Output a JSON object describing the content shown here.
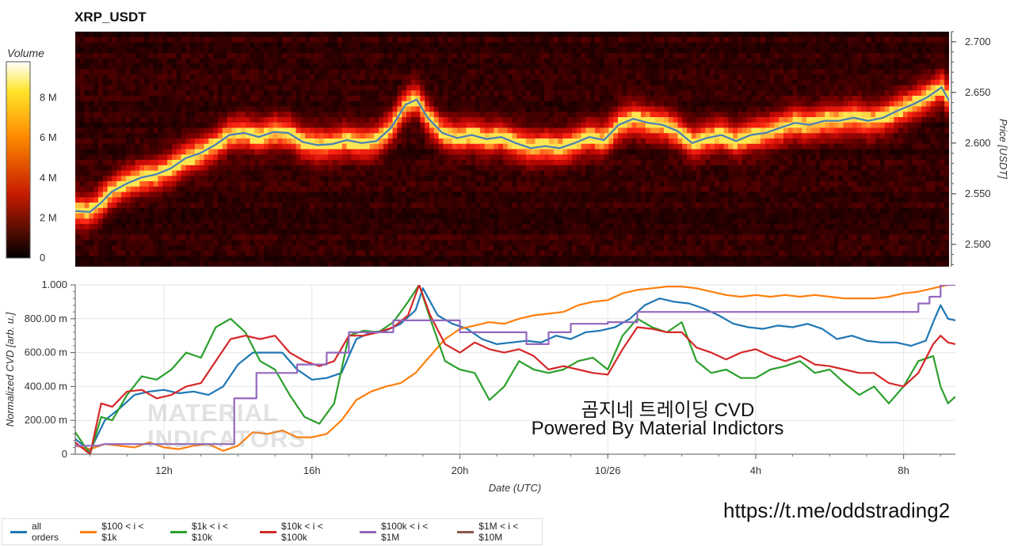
{
  "colors": {
    "all_orders": "#1f77b4",
    "s100_1k": "#ff7f0e",
    "s1k_10k": "#2ca02c",
    "s10k_100k": "#d62728",
    "s100k_1m": "#9467bd",
    "s1m_10m": "#8c564b"
  },
  "header": {
    "title": "XRP_USDT"
  },
  "watermark": {
    "line1": "곰지네 트레이딩 CVD",
    "line2": "Powered By Material Indictors",
    "logo_line1": "MATERIAL",
    "logo_line2": "INDICATORS"
  },
  "footer": {
    "link": "https://t.me/oddstrading2"
  },
  "chart_data": [
    {
      "type": "heatmap",
      "title": "XRP_USDT",
      "colorbar_label": "Volume",
      "colorbar_ticks": [
        "0",
        "2 M",
        "4 M",
        "6 M",
        "8 M"
      ],
      "colorbar_range": [
        0,
        9800000
      ],
      "ylabel": "Price [USDT]",
      "y_ticks": [
        "2.500",
        "2.550",
        "2.600",
        "2.650",
        "2.700"
      ],
      "ylim": [
        2.478,
        2.71
      ],
      "xlim_hours": [
        9.6,
        33.4
      ],
      "price_line": {
        "color": "#4a7fb5",
        "x_hours": [
          9.6,
          10.0,
          10.3,
          10.6,
          11.0,
          11.4,
          11.8,
          12.2,
          12.6,
          13.0,
          13.4,
          13.8,
          14.2,
          14.6,
          15.0,
          15.4,
          15.8,
          16.2,
          16.6,
          17.0,
          17.4,
          17.8,
          18.2,
          18.6,
          18.9,
          19.2,
          19.6,
          20.0,
          20.4,
          20.8,
          21.2,
          21.6,
          22.0,
          22.4,
          22.8,
          23.2,
          23.6,
          24.0,
          24.4,
          24.8,
          25.2,
          25.6,
          26.0,
          26.4,
          26.8,
          27.2,
          27.6,
          28.0,
          28.4,
          28.8,
          29.2,
          29.6,
          30.0,
          30.4,
          30.8,
          31.2,
          31.6,
          32.0,
          32.4,
          32.8,
          33.2,
          33.4
        ],
        "y_price": [
          2.533,
          2.532,
          2.541,
          2.552,
          2.56,
          2.566,
          2.569,
          2.575,
          2.585,
          2.59,
          2.598,
          2.608,
          2.61,
          2.606,
          2.611,
          2.61,
          2.601,
          2.598,
          2.599,
          2.603,
          2.6,
          2.602,
          2.615,
          2.638,
          2.643,
          2.625,
          2.61,
          2.605,
          2.608,
          2.604,
          2.606,
          2.6,
          2.595,
          2.597,
          2.595,
          2.6,
          2.606,
          2.603,
          2.618,
          2.624,
          2.62,
          2.618,
          2.612,
          2.6,
          2.605,
          2.608,
          2.602,
          2.608,
          2.61,
          2.615,
          2.62,
          2.618,
          2.622,
          2.622,
          2.625,
          2.622,
          2.625,
          2.632,
          2.638,
          2.645,
          2.655,
          2.642
        ]
      }
    },
    {
      "type": "line",
      "xlabel": "Date (UTC)",
      "ylabel": "Normalized CVD [arb. u.]",
      "x_tick_labels": [
        "12h",
        "16h",
        "20h",
        "10/26",
        "4h",
        "8h"
      ],
      "x_tick_hours": [
        12,
        16,
        20,
        24,
        28,
        32
      ],
      "xlim_hours": [
        9.6,
        33.4
      ],
      "y_tick_labels": [
        "0",
        "200.00 m",
        "400.00 m",
        "600.00 m",
        "800.00 m",
        "1.000"
      ],
      "ylim": [
        0,
        1
      ],
      "grid": true,
      "legend_position": "bottom-left",
      "series": [
        {
          "name": "all orders",
          "x_hours": [
            9.6,
            10.0,
            10.4,
            10.8,
            11.2,
            11.6,
            12.0,
            12.4,
            12.8,
            13.2,
            13.6,
            14.0,
            14.4,
            14.8,
            15.2,
            15.6,
            16.0,
            16.4,
            16.8,
            17.2,
            17.6,
            18.0,
            18.4,
            18.8,
            19.0,
            19.4,
            19.8,
            20.2,
            20.6,
            21.0,
            21.4,
            21.8,
            22.2,
            22.6,
            23.0,
            23.4,
            23.8,
            24.2,
            24.6,
            25.0,
            25.4,
            25.8,
            26.2,
            26.6,
            27.0,
            27.4,
            27.8,
            28.2,
            28.6,
            29.0,
            29.4,
            29.8,
            30.2,
            30.6,
            31.0,
            31.4,
            31.8,
            32.2,
            32.6,
            32.8,
            33.0,
            33.2,
            33.4
          ],
          "y": [
            0.09,
            0.02,
            0.2,
            0.27,
            0.35,
            0.37,
            0.38,
            0.36,
            0.37,
            0.35,
            0.4,
            0.53,
            0.6,
            0.6,
            0.6,
            0.5,
            0.44,
            0.45,
            0.48,
            0.68,
            0.72,
            0.73,
            0.77,
            0.85,
            0.98,
            0.82,
            0.77,
            0.74,
            0.68,
            0.65,
            0.66,
            0.67,
            0.66,
            0.7,
            0.68,
            0.72,
            0.73,
            0.75,
            0.8,
            0.88,
            0.92,
            0.9,
            0.89,
            0.86,
            0.82,
            0.77,
            0.75,
            0.74,
            0.76,
            0.75,
            0.77,
            0.74,
            0.68,
            0.7,
            0.67,
            0.66,
            0.66,
            0.64,
            0.67,
            0.78,
            0.88,
            0.8,
            0.79
          ]
        },
        {
          "name": "$100 < i < $1k",
          "x_hours": [
            9.6,
            10.0,
            10.4,
            10.8,
            11.2,
            11.6,
            12.0,
            12.4,
            12.8,
            13.2,
            13.6,
            14.0,
            14.4,
            14.8,
            15.2,
            15.6,
            16.0,
            16.4,
            16.8,
            17.2,
            17.6,
            18.0,
            18.4,
            18.8,
            19.2,
            19.6,
            20.0,
            20.4,
            20.8,
            21.2,
            21.6,
            22.0,
            22.4,
            22.8,
            23.2,
            23.6,
            24.0,
            24.4,
            24.8,
            25.2,
            25.6,
            26.0,
            26.4,
            26.8,
            27.2,
            27.6,
            28.0,
            28.4,
            28.8,
            29.2,
            29.6,
            30.0,
            30.4,
            30.8,
            31.2,
            31.6,
            32.0,
            32.4,
            32.8,
            33.0,
            33.2,
            33.4
          ],
          "y": [
            0.05,
            0.03,
            0.06,
            0.05,
            0.04,
            0.07,
            0.04,
            0.03,
            0.05,
            0.06,
            0.02,
            0.05,
            0.13,
            0.12,
            0.14,
            0.1,
            0.1,
            0.12,
            0.2,
            0.32,
            0.37,
            0.4,
            0.42,
            0.48,
            0.58,
            0.68,
            0.74,
            0.76,
            0.78,
            0.77,
            0.8,
            0.82,
            0.83,
            0.84,
            0.88,
            0.9,
            0.91,
            0.95,
            0.97,
            0.98,
            0.99,
            0.99,
            0.98,
            0.96,
            0.94,
            0.93,
            0.94,
            0.93,
            0.94,
            0.93,
            0.94,
            0.93,
            0.92,
            0.92,
            0.92,
            0.93,
            0.95,
            0.96,
            0.98,
            0.99,
            1.0,
            1.0
          ]
        },
        {
          "name": "$1k < i < $10k",
          "x_hours": [
            9.6,
            10.0,
            10.3,
            10.6,
            11.0,
            11.4,
            11.8,
            12.2,
            12.6,
            13.0,
            13.4,
            13.8,
            14.2,
            14.6,
            15.0,
            15.4,
            15.8,
            16.2,
            16.6,
            17.0,
            17.4,
            17.8,
            18.2,
            18.6,
            18.9,
            19.2,
            19.6,
            20.0,
            20.4,
            20.8,
            21.2,
            21.6,
            22.0,
            22.4,
            22.8,
            23.2,
            23.6,
            24.0,
            24.4,
            24.8,
            25.2,
            25.6,
            26.0,
            26.4,
            26.8,
            27.2,
            27.6,
            28.0,
            28.4,
            28.8,
            29.2,
            29.6,
            30.0,
            30.4,
            30.8,
            31.2,
            31.6,
            32.0,
            32.4,
            32.8,
            33.0,
            33.2,
            33.4
          ],
          "y": [
            0.13,
            0.0,
            0.22,
            0.2,
            0.35,
            0.46,
            0.44,
            0.5,
            0.6,
            0.57,
            0.75,
            0.8,
            0.72,
            0.55,
            0.5,
            0.35,
            0.22,
            0.18,
            0.3,
            0.7,
            0.73,
            0.72,
            0.78,
            0.9,
            1.0,
            0.8,
            0.55,
            0.5,
            0.48,
            0.32,
            0.4,
            0.55,
            0.5,
            0.48,
            0.5,
            0.55,
            0.57,
            0.5,
            0.7,
            0.8,
            0.75,
            0.72,
            0.78,
            0.55,
            0.48,
            0.5,
            0.45,
            0.45,
            0.5,
            0.52,
            0.55,
            0.48,
            0.5,
            0.42,
            0.35,
            0.4,
            0.3,
            0.4,
            0.55,
            0.58,
            0.4,
            0.3,
            0.34
          ]
        },
        {
          "name": "$10k < i < $100k",
          "x_hours": [
            9.6,
            10.0,
            10.3,
            10.6,
            11.0,
            11.4,
            11.8,
            12.2,
            12.6,
            13.0,
            13.4,
            13.8,
            14.2,
            14.6,
            15.0,
            15.4,
            15.8,
            16.2,
            16.6,
            17.0,
            17.4,
            17.8,
            18.2,
            18.6,
            18.9,
            19.2,
            19.6,
            20.0,
            20.4,
            20.8,
            21.2,
            21.6,
            22.0,
            22.4,
            22.8,
            23.2,
            23.6,
            24.0,
            24.4,
            24.8,
            25.2,
            25.6,
            26.0,
            26.4,
            26.8,
            27.2,
            27.6,
            28.0,
            28.4,
            28.8,
            29.2,
            29.6,
            30.0,
            30.4,
            30.8,
            31.2,
            31.6,
            32.0,
            32.4,
            32.8,
            33.0,
            33.2,
            33.4
          ],
          "y": [
            0.07,
            0.0,
            0.3,
            0.28,
            0.37,
            0.38,
            0.33,
            0.35,
            0.4,
            0.42,
            0.55,
            0.68,
            0.7,
            0.68,
            0.7,
            0.6,
            0.55,
            0.52,
            0.55,
            0.7,
            0.7,
            0.72,
            0.75,
            0.82,
            1.0,
            0.82,
            0.65,
            0.6,
            0.66,
            0.62,
            0.6,
            0.62,
            0.58,
            0.5,
            0.52,
            0.5,
            0.48,
            0.47,
            0.62,
            0.75,
            0.74,
            0.72,
            0.72,
            0.63,
            0.6,
            0.56,
            0.6,
            0.62,
            0.58,
            0.55,
            0.58,
            0.53,
            0.52,
            0.5,
            0.48,
            0.48,
            0.42,
            0.4,
            0.48,
            0.65,
            0.7,
            0.66,
            0.65
          ]
        },
        {
          "name": "$100k < i < $1M",
          "x_hours": [
            9.6,
            10.2,
            10.4,
            13.9,
            13.9,
            14.5,
            14.5,
            15.6,
            15.6,
            16.4,
            16.4,
            17.0,
            17.0,
            17.6,
            17.6,
            18.2,
            18.2,
            20.0,
            20.0,
            21.8,
            21.8,
            22.4,
            22.4,
            23.0,
            23.0,
            24.0,
            24.0,
            24.8,
            24.8,
            27.0,
            27.0,
            32.4,
            32.4,
            32.7,
            32.7,
            33.0,
            33.0,
            33.4
          ],
          "y": [
            0.05,
            0.05,
            0.06,
            0.06,
            0.33,
            0.33,
            0.48,
            0.48,
            0.53,
            0.53,
            0.6,
            0.6,
            0.72,
            0.72,
            0.72,
            0.72,
            0.79,
            0.79,
            0.72,
            0.72,
            0.65,
            0.65,
            0.72,
            0.72,
            0.77,
            0.77,
            0.78,
            0.78,
            0.84,
            0.84,
            0.84,
            0.84,
            0.89,
            0.89,
            0.93,
            0.93,
            1.0,
            1.0
          ]
        },
        {
          "name": "$1M < i < $10M",
          "x_hours": [],
          "y": []
        }
      ]
    }
  ]
}
